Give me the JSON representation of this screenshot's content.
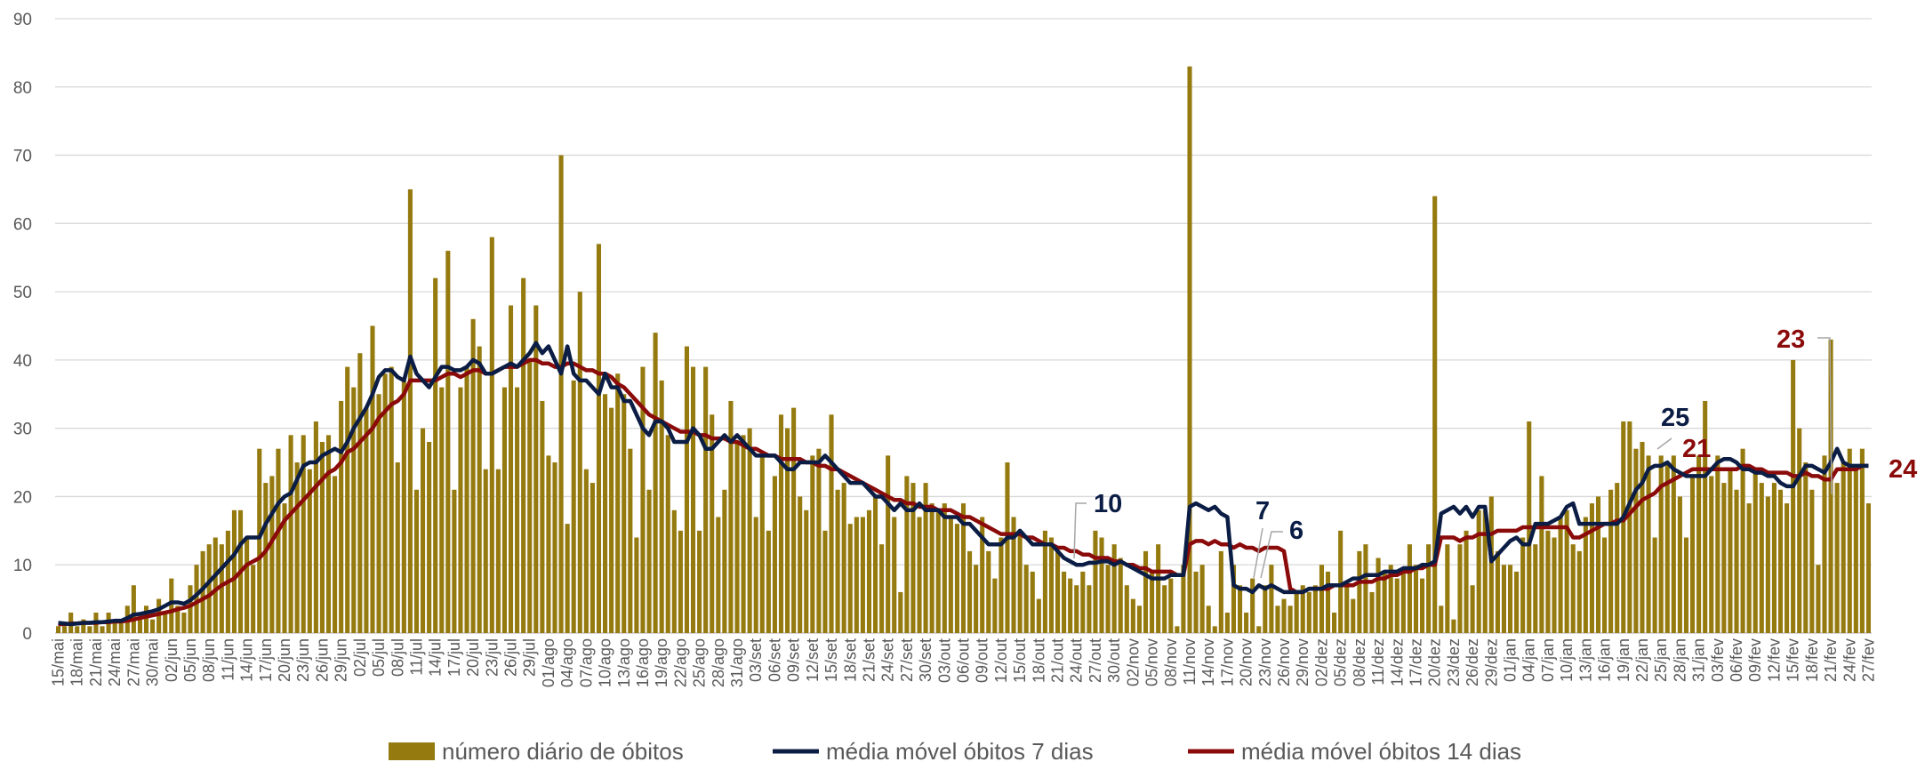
{
  "chart_data": {
    "type": "combo",
    "ylim": [
      0,
      90
    ],
    "yticks": [
      0,
      10,
      20,
      30,
      40,
      50,
      60,
      70,
      80,
      90
    ],
    "grid": true,
    "legend": "bottom",
    "categories": [
      "15/mai",
      null,
      null,
      "18/mai",
      null,
      null,
      "21/mai",
      null,
      null,
      "24/mai",
      null,
      null,
      "27/mai",
      null,
      null,
      "30/mai",
      null,
      null,
      "02/jun",
      null,
      null,
      "05/jun",
      null,
      null,
      "08/jun",
      null,
      null,
      "11/jun",
      null,
      null,
      "14/jun",
      null,
      null,
      "17/jun",
      null,
      null,
      "20/jun",
      null,
      null,
      "23/jun",
      null,
      null,
      "26/jun",
      null,
      null,
      "29/jun",
      null,
      null,
      "02/jul",
      null,
      null,
      "05/jul",
      null,
      null,
      "08/jul",
      null,
      null,
      "11/jul",
      null,
      null,
      "14/jul",
      null,
      null,
      "17/jul",
      null,
      null,
      "20/jul",
      null,
      null,
      "23/jul",
      null,
      null,
      "26/jul",
      null,
      null,
      "29/jul",
      null,
      null,
      "01/ago",
      null,
      null,
      "04/ago",
      null,
      null,
      "07/ago",
      null,
      null,
      "10/ago",
      null,
      null,
      "13/ago",
      null,
      null,
      "16/ago",
      null,
      null,
      "19/ago",
      null,
      null,
      "22/ago",
      null,
      null,
      "25/ago",
      null,
      null,
      "28/ago",
      null,
      null,
      "31/ago",
      null,
      null,
      "03/set",
      null,
      null,
      "06/set",
      null,
      null,
      "09/set",
      null,
      null,
      "12/set",
      null,
      null,
      "15/set",
      null,
      null,
      "18/set",
      null,
      null,
      "21/set",
      null,
      null,
      "24/set",
      null,
      null,
      "27/set",
      null,
      null,
      "30/set",
      null,
      null,
      "03/out",
      null,
      null,
      "06/out",
      null,
      null,
      "09/out",
      null,
      null,
      "12/out",
      null,
      null,
      "15/out",
      null,
      null,
      "18/out",
      null,
      null,
      "21/out",
      null,
      null,
      "24/out",
      null,
      null,
      "27/out",
      null,
      null,
      "30/out",
      null,
      null,
      "02/nov",
      null,
      null,
      "05/nov",
      null,
      null,
      "08/nov",
      null,
      null,
      "11/nov",
      null,
      null,
      "14/nov",
      null,
      null,
      "17/nov",
      null,
      null,
      "20/nov",
      null,
      null,
      "23/nov",
      null,
      null,
      "26/nov",
      null,
      null,
      "29/nov",
      null,
      null,
      "02/dez",
      null,
      null,
      "05/dez",
      null,
      null,
      "08/dez",
      null,
      null,
      "11/dez",
      null,
      null,
      "14/dez",
      null,
      null,
      "17/dez",
      null,
      null,
      "20/dez",
      null,
      null,
      "23/dez",
      null,
      null,
      "26/dez",
      null,
      null,
      "29/dez",
      null,
      null,
      "01/jan",
      null,
      null,
      "04/jan",
      null,
      null,
      "07/jan",
      null,
      null,
      "10/jan",
      null,
      null,
      "13/jan",
      null,
      null,
      "16/jan",
      null,
      null,
      "19/jan",
      null,
      null,
      "22/jan",
      null,
      null,
      "25/jan",
      null,
      null,
      "28/jan",
      null,
      null,
      "31/jan",
      null,
      null,
      "03/fev",
      null,
      null,
      "06/fev",
      null,
      null,
      "09/fev",
      null,
      null,
      "12/fev",
      null,
      null,
      "15/fev",
      null,
      null,
      "18/fev",
      null,
      null,
      "21/fev",
      null,
      null,
      "24/fev",
      null,
      null,
      "27/fev"
    ],
    "series": [
      {
        "name": "número diário de óbitos",
        "type": "bar",
        "color": "#957a0f",
        "values": [
          1,
          1,
          3,
          1,
          2,
          1,
          3,
          1,
          3,
          2,
          2,
          4,
          7,
          2,
          4,
          2,
          5,
          3,
          8,
          4,
          3,
          7,
          10,
          12,
          13,
          14,
          13,
          15,
          18,
          18,
          14,
          10,
          27,
          22,
          23,
          27,
          19,
          29,
          25,
          29,
          24,
          31,
          28,
          29,
          23,
          34,
          39,
          36,
          41,
          33,
          45,
          35,
          38,
          39,
          25,
          37,
          65,
          21,
          30,
          28,
          52,
          36,
          56,
          21,
          36,
          39,
          46,
          42,
          24,
          58,
          24,
          36,
          48,
          36,
          52,
          40,
          48,
          34,
          26,
          25,
          70,
          16,
          37,
          50,
          24,
          22,
          57,
          35,
          33,
          38,
          35,
          27,
          14,
          39,
          21,
          44,
          37,
          29,
          18,
          15,
          42,
          39,
          15,
          39,
          32,
          17,
          21,
          34,
          28,
          29,
          30,
          17,
          26,
          15,
          23,
          32,
          30,
          33,
          20,
          18,
          26,
          27,
          15,
          32,
          21,
          22,
          16,
          17,
          17,
          18,
          20,
          13,
          26,
          17,
          6,
          23,
          22,
          17,
          22,
          19,
          18,
          19,
          17,
          16,
          19,
          12,
          10,
          17,
          12,
          8,
          14,
          25,
          17,
          15,
          10,
          9,
          5,
          15,
          14,
          12,
          9,
          8,
          7,
          9,
          7,
          15,
          14,
          10,
          13,
          11,
          7,
          5,
          4,
          12,
          9,
          13,
          7,
          8,
          1,
          10,
          83,
          9,
          10,
          4,
          1,
          12,
          3,
          10,
          7,
          3,
          8,
          1,
          7,
          10,
          4,
          5,
          4,
          6,
          7,
          6,
          7,
          10,
          9,
          3,
          15,
          7,
          5,
          12,
          13,
          6,
          11,
          9,
          10,
          8,
          9,
          13,
          10,
          8,
          13,
          64,
          4,
          13,
          2,
          13,
          15,
          7,
          18,
          18,
          20,
          12,
          10,
          10,
          9,
          14,
          31,
          13,
          23,
          15,
          14,
          17,
          18,
          13,
          12,
          17,
          19,
          20,
          14,
          21,
          22,
          31,
          31,
          27,
          28,
          26,
          14,
          26,
          25,
          26,
          20,
          14,
          23,
          26,
          34,
          23,
          26,
          22,
          24,
          21,
          27,
          19,
          24,
          22,
          20,
          22,
          21,
          19,
          40,
          30,
          25,
          21,
          10,
          26,
          43,
          22,
          25,
          27,
          24,
          27,
          19
        ]
      },
      {
        "name": "média móvel óbitos 7 dias",
        "type": "line",
        "color": "#0b1d45",
        "values": [
          1.5,
          1.4,
          1.3,
          1.4,
          1.5,
          1.5,
          1.6,
          1.6,
          1.7,
          1.8,
          1.8,
          2.2,
          2.7,
          2.8,
          3,
          3.2,
          3.5,
          4,
          4.5,
          4.5,
          4.3,
          4.8,
          5.6,
          6.5,
          7.5,
          8.5,
          9.5,
          10.5,
          11.5,
          13,
          14,
          14,
          14,
          16,
          17.5,
          19,
          20,
          20.5,
          22.5,
          24.5,
          25,
          25,
          26,
          26.5,
          27,
          26.5,
          28,
          30,
          31.5,
          33,
          35,
          37.5,
          38.5,
          38.5,
          37.5,
          37,
          40.5,
          38,
          37,
          36,
          37.5,
          39,
          39,
          38.5,
          38.5,
          39,
          40,
          39.5,
          38,
          38,
          38.5,
          39,
          39.5,
          39,
          40,
          41,
          42.5,
          41,
          42,
          40,
          38,
          42,
          38,
          37,
          37,
          36,
          35,
          38,
          36,
          36,
          34,
          34,
          32,
          30,
          29,
          31,
          31,
          30,
          28,
          28,
          28,
          30,
          29,
          27,
          27,
          28,
          29,
          28,
          29,
          28,
          27,
          26,
          26,
          26,
          26,
          25,
          24,
          24,
          25,
          25,
          25,
          25,
          26,
          25,
          24,
          23,
          22,
          22,
          22,
          21,
          20,
          20,
          19,
          18,
          19,
          18,
          18,
          19,
          18,
          18,
          18,
          17,
          17,
          17,
          16,
          16,
          15,
          14,
          13,
          13,
          13,
          14,
          14,
          15,
          14,
          13,
          13,
          13,
          13,
          12,
          11,
          10.5,
          10,
          10,
          10.3,
          10.3,
          10.5,
          10.5,
          10,
          10.5,
          10,
          9.5,
          9,
          8.5,
          8,
          8,
          8,
          8.5,
          8.5,
          8.5,
          18.5,
          19,
          18.5,
          18,
          18.5,
          17.5,
          17,
          7,
          6.5,
          6.5,
          6,
          7,
          6.5,
          7,
          6.5,
          6,
          6,
          6,
          6,
          6.5,
          6.5,
          6.5,
          7,
          7,
          7,
          7.5,
          8,
          8,
          8.5,
          8.5,
          8.5,
          9,
          9,
          9,
          9.5,
          9.5,
          9.5,
          10,
          10,
          10.5,
          17.5,
          18,
          18.5,
          17.5,
          18.5,
          17,
          18.5,
          18.5,
          10.5,
          11.5,
          12.5,
          13.5,
          14,
          13,
          13,
          16,
          16,
          16,
          16.5,
          17,
          18.5,
          19,
          16,
          16,
          16,
          16,
          16,
          16,
          16,
          17,
          19,
          21,
          22,
          24,
          24.5,
          24.5,
          25,
          24,
          23.5,
          23,
          23,
          23,
          23,
          24,
          25,
          25.5,
          25.5,
          25,
          24,
          24,
          23.5,
          23.5,
          23,
          23,
          22,
          21.5,
          21.5,
          23,
          24.5,
          24.5,
          24,
          23.5,
          25,
          27,
          25,
          24.5,
          24.5,
          24.5,
          24.5
        ]
      },
      {
        "name": "média móvel óbitos 14 dias",
        "type": "line",
        "color": "#8b0a0a",
        "values": [
          1.3,
          1.3,
          1.4,
          1.4,
          1.5,
          1.5,
          1.5,
          1.6,
          1.6,
          1.7,
          1.7,
          1.8,
          2,
          2.2,
          2.4,
          2.6,
          2.8,
          3,
          3.2,
          3.5,
          3.7,
          4,
          4.5,
          5,
          5.5,
          6.3,
          7,
          7.5,
          8,
          9,
          10,
          10.5,
          11,
          12,
          13.5,
          15,
          16.5,
          17.5,
          18.5,
          19.5,
          20.5,
          21.5,
          22.5,
          23.5,
          24,
          25,
          26.5,
          27,
          28,
          29,
          30,
          31.5,
          32.5,
          33.5,
          34,
          35,
          37,
          37,
          37,
          37,
          37,
          37.5,
          38,
          38,
          37.5,
          38,
          38.5,
          38.5,
          38,
          38,
          38.5,
          39,
          39,
          39,
          39.5,
          40,
          40,
          39.5,
          39.5,
          39,
          39,
          39.5,
          39.5,
          39,
          38.5,
          38.5,
          38,
          38,
          37.5,
          36.5,
          36,
          35,
          34,
          33,
          32,
          31.5,
          31,
          30.5,
          30,
          29.5,
          29.5,
          29.5,
          29,
          29,
          28.5,
          28.5,
          28.5,
          28,
          28,
          27.5,
          27,
          27,
          26.5,
          26,
          26,
          25.5,
          25.5,
          25.5,
          25.5,
          25,
          25,
          24.5,
          24.5,
          24,
          24,
          23.5,
          23,
          22.5,
          22,
          21.5,
          21,
          20.5,
          20,
          19.5,
          19.5,
          19,
          19,
          18.5,
          18.5,
          18.5,
          18,
          18,
          18,
          17.5,
          17,
          17,
          16.5,
          16,
          15.5,
          15,
          14.5,
          14.5,
          14.5,
          14.5,
          14,
          14,
          13.5,
          13,
          13,
          12.5,
          12.5,
          12,
          12,
          11.5,
          11.5,
          11,
          11,
          11,
          10.5,
          10.5,
          10,
          10,
          9.5,
          9.5,
          9,
          9,
          9,
          9,
          8.5,
          8.5,
          13,
          13.5,
          13.5,
          13,
          13.5,
          13,
          13,
          12.5,
          13,
          12.5,
          12.5,
          12,
          12.5,
          12.5,
          12.5,
          12,
          6.5,
          6,
          6,
          6.5,
          6.5,
          6.5,
          6.5,
          7,
          7,
          7,
          7,
          7.5,
          7.5,
          7.5,
          8,
          8,
          8.5,
          8.5,
          9,
          9,
          9.5,
          9.5,
          10,
          10,
          14,
          14,
          14,
          13.5,
          14,
          14,
          14.5,
          14.5,
          14.5,
          15,
          15,
          15,
          15,
          15.5,
          15.5,
          15.5,
          15.5,
          15.5,
          15.5,
          15.5,
          15.5,
          14,
          14,
          14.5,
          15,
          15.5,
          16,
          16,
          16.5,
          16.5,
          17.5,
          18.5,
          19.5,
          20,
          20.5,
          21.5,
          22,
          22.5,
          23,
          23.5,
          24,
          24,
          24,
          24,
          24,
          24,
          24,
          24,
          24.5,
          24.5,
          24,
          24,
          23.5,
          23.5,
          23.5,
          23.5,
          23,
          23,
          23.5,
          23,
          23,
          22.5,
          22.5,
          24,
          24,
          24,
          24,
          24.5,
          24.5
        ]
      }
    ],
    "annotations": [
      {
        "text": "10",
        "color": "#0b1d45"
      },
      {
        "text": "7",
        "color": "#0b1d45"
      },
      {
        "text": "6",
        "color": "#0b1d45"
      },
      {
        "text": "25",
        "color": "#0b1d45"
      },
      {
        "text": "21",
        "color": "#8b0a0a"
      },
      {
        "text": "23",
        "color": "#8b0a0a"
      },
      {
        "text": "24",
        "color": "#8b0a0a"
      }
    ]
  }
}
